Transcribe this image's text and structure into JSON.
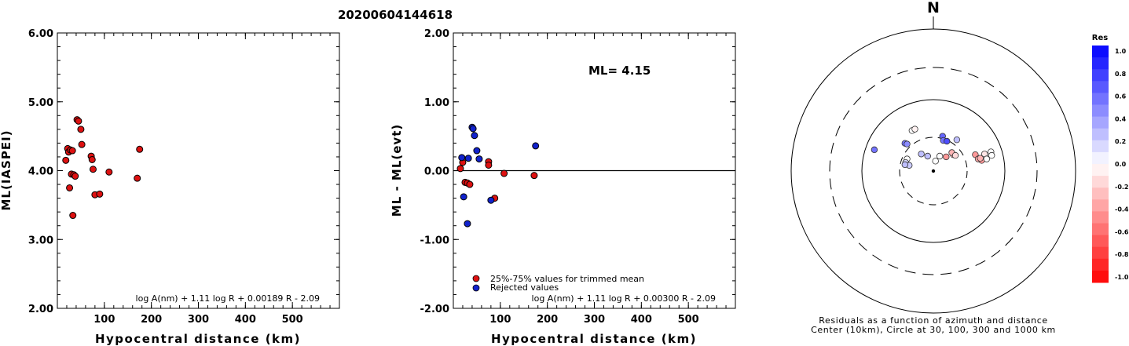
{
  "event_id": "20200604144618",
  "panel1": {
    "ylabel": "ML(IASPEI)",
    "xlabel": "Hypocentral distance (km)",
    "formula": "log A(nm) + 1.11 log R + 0.00189 R - 2.09",
    "xticks": [
      "100",
      "200",
      "300",
      "400",
      "500"
    ],
    "yticks": [
      "2.00",
      "3.00",
      "4.00",
      "5.00",
      "6.00"
    ]
  },
  "panel2": {
    "ylabel": "ML - ML(evt)",
    "xlabel": "Hypocentral distance (km)",
    "ml_text": "ML= 4.15",
    "formula": "log A(nm) + 1.11 log R + 0.00300 R - 2.09",
    "xticks": [
      "100",
      "200",
      "300",
      "400",
      "500"
    ],
    "yticks": [
      "-2.00",
      "-1.00",
      "0.00",
      "1.00",
      "2.00"
    ],
    "legend": [
      "25%-75% values for trimmed mean",
      "Rejected values"
    ]
  },
  "panel3": {
    "north_label": "N",
    "caption1": "Residuals as a function of azimuth and distance",
    "caption2": "Center (10km), Circle at 30, 100, 300 and 1000 km",
    "colorbar_title": "Res",
    "colorbar_ticks": [
      "1.0",
      "0.8",
      "0.6",
      "0.4",
      "0.2",
      "0.0",
      "-0.2",
      "-0.4",
      "-0.6",
      "-0.8",
      "-1.0"
    ]
  },
  "chart_data": [
    {
      "type": "scatter",
      "title": "20200604144618",
      "xlabel": "Hypocentral distance (km)",
      "ylabel": "ML(IASPEI)",
      "xlim": [
        0,
        600
      ],
      "ylim": [
        2,
        6
      ],
      "annotation": "log A(nm) + 1.11 log R + 0.00189 R - 2.09",
      "color": "#dd1111",
      "x": [
        18,
        22,
        24,
        26,
        28,
        30,
        32,
        33,
        35,
        38,
        42,
        45,
        50,
        52,
        72,
        74,
        76,
        80,
        90,
        110,
        170,
        175
      ],
      "y": [
        4.15,
        4.32,
        4.27,
        3.75,
        4.3,
        3.95,
        4.29,
        3.35,
        3.94,
        3.92,
        4.74,
        4.72,
        4.6,
        4.38,
        4.21,
        4.16,
        4.02,
        3.65,
        3.66,
        3.98,
        3.89,
        4.31
      ]
    },
    {
      "type": "scatter",
      "xlabel": "Hypocentral distance (km)",
      "ylabel": "ML - ML(evt)",
      "xlim": [
        0,
        600
      ],
      "ylim": [
        -2,
        2
      ],
      "reference_line": 0,
      "annotation": "ML= 4.15",
      "formula": "log A(nm) + 1.11 log R + 0.00300 R - 2.09",
      "series": [
        {
          "name": "25%-75% values for trimmed mean",
          "color": "#dd1111",
          "x": [
            15,
            20,
            25,
            30,
            35,
            75,
            75,
            88,
            108,
            172
          ],
          "y": [
            0.03,
            0.12,
            -0.17,
            -0.18,
            -0.2,
            0.13,
            0.08,
            -0.4,
            -0.04,
            -0.07
          ]
        },
        {
          "name": "Rejected values",
          "color": "#1122cc",
          "x": [
            18,
            22,
            30,
            32,
            40,
            42,
            45,
            50,
            55,
            80,
            175
          ],
          "y": [
            0.19,
            -0.38,
            -0.77,
            0.18,
            0.63,
            0.61,
            0.51,
            0.29,
            0.17,
            -0.43,
            0.36
          ]
        }
      ]
    },
    {
      "type": "scatter",
      "subtype": "polar",
      "caption": "Residuals as a function of azimuth and distance",
      "rings_km": [
        30,
        100,
        300,
        1000
      ],
      "center_km": 10,
      "stations": [
        {
          "dx": -0.415,
          "dy": 0.15,
          "res": 0.55
        },
        {
          "dx": -0.2,
          "dy": 0.195,
          "res": 0.55
        },
        {
          "dx": -0.185,
          "dy": 0.19,
          "res": 0.45
        },
        {
          "dx": -0.185,
          "dy": 0.085,
          "res": 0.0
        },
        {
          "dx": -0.195,
          "dy": 0.06,
          "res": 0.15
        },
        {
          "dx": -0.17,
          "dy": 0.04,
          "res": 0.2
        },
        {
          "dx": -0.2,
          "dy": 0.045,
          "res": 0.25
        },
        {
          "dx": -0.15,
          "dy": 0.285,
          "res": 0.0
        },
        {
          "dx": -0.13,
          "dy": 0.295,
          "res": -0.05
        },
        {
          "dx": -0.085,
          "dy": 0.12,
          "res": 0.25
        },
        {
          "dx": -0.04,
          "dy": 0.105,
          "res": 0.25
        },
        {
          "dx": 0.015,
          "dy": 0.07,
          "res": 0.0
        },
        {
          "dx": 0.045,
          "dy": 0.105,
          "res": 0.0
        },
        {
          "dx": 0.065,
          "dy": 0.245,
          "res": 0.6
        },
        {
          "dx": 0.07,
          "dy": 0.215,
          "res": 0.55
        },
        {
          "dx": 0.095,
          "dy": 0.21,
          "res": 0.7
        },
        {
          "dx": 0.09,
          "dy": 0.1,
          "res": -0.4
        },
        {
          "dx": 0.165,
          "dy": 0.22,
          "res": 0.25
        },
        {
          "dx": 0.14,
          "dy": 0.115,
          "res": -0.3
        },
        {
          "dx": 0.13,
          "dy": 0.13,
          "res": -0.3
        },
        {
          "dx": 0.155,
          "dy": 0.11,
          "res": -0.15
        },
        {
          "dx": 0.295,
          "dy": 0.115,
          "res": -0.4
        },
        {
          "dx": 0.315,
          "dy": 0.085,
          "res": -0.35
        },
        {
          "dx": 0.34,
          "dy": 0.075,
          "res": -0.4
        },
        {
          "dx": 0.33,
          "dy": 0.09,
          "res": -0.3
        },
        {
          "dx": 0.36,
          "dy": 0.12,
          "res": -0.1
        },
        {
          "dx": 0.405,
          "dy": 0.135,
          "res": 0.0
        },
        {
          "dx": 0.41,
          "dy": 0.11,
          "res": 0.0
        },
        {
          "dx": 0.375,
          "dy": 0.085,
          "res": 0.0
        }
      ]
    }
  ]
}
